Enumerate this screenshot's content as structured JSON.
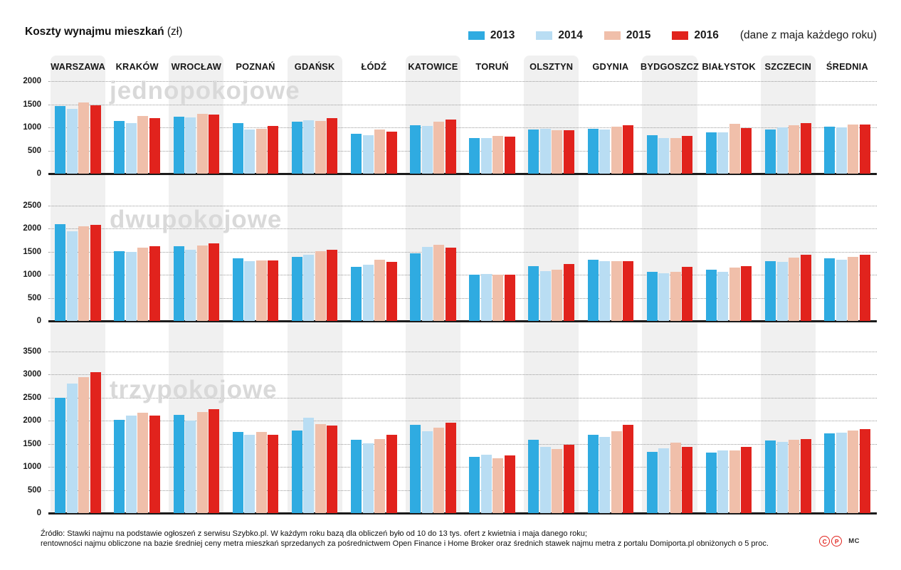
{
  "title": {
    "main": "Koszty wynajmu mieszkań",
    "unit": "(zł)"
  },
  "legend": {
    "items": [
      {
        "label": "2013",
        "color": "#2fabe1"
      },
      {
        "label": "2014",
        "color": "#b9ddf3"
      },
      {
        "label": "2015",
        "color": "#f0bfaa"
      },
      {
        "label": "2016",
        "color": "#e1231d"
      }
    ],
    "note": "(dane z maja każdego roku)"
  },
  "cities": [
    "WARSZAWA",
    "KRAKÓW",
    "WROCŁAW",
    "POZNAŃ",
    "GDAŃSK",
    "ŁÓDŹ",
    "KATOWICE",
    "TORUŃ",
    "OLSZTYN",
    "GDYNIA",
    "BYDGOSZCZ",
    "BIAŁYSTOK",
    "SZCZECIN",
    "ŚREDNIA"
  ],
  "chart_data": [
    {
      "type": "bar",
      "title": "jednopokojowe",
      "ylim": [
        0,
        2000
      ],
      "ytick_step": 500,
      "grid": "dotted-horizontal",
      "categories": [
        "WARSZAWA",
        "KRAKÓW",
        "WROCŁAW",
        "POZNAŃ",
        "GDAŃSK",
        "ŁÓDŹ",
        "KATOWICE",
        "TORUŃ",
        "OLSZTYN",
        "GDYNIA",
        "BYDGOSZCZ",
        "BIAŁYSTOK",
        "SZCZECIN",
        "ŚREDNIA"
      ],
      "series": [
        {
          "name": "2013",
          "values": [
            1455,
            1140,
            1225,
            1100,
            1120,
            865,
            1045,
            765,
            950,
            965,
            825,
            885,
            950,
            1015
          ]
        },
        {
          "name": "2014",
          "values": [
            1400,
            1100,
            1215,
            960,
            1150,
            825,
            1035,
            765,
            975,
            955,
            765,
            895,
            1005,
            995
          ]
        },
        {
          "name": "2015",
          "values": [
            1545,
            1250,
            1300,
            965,
            1140,
            950,
            1125,
            810,
            935,
            1015,
            765,
            1075,
            1050,
            1065
          ]
        },
        {
          "name": "2016",
          "values": [
            1480,
            1205,
            1270,
            1030,
            1200,
            910,
            1165,
            800,
            945,
            1050,
            820,
            985,
            1085,
            1060
          ]
        }
      ]
    },
    {
      "type": "bar",
      "title": "dwupokojowe",
      "ylim": [
        0,
        2500
      ],
      "ytick_step": 500,
      "grid": "dotted-horizontal",
      "categories": [
        "WARSZAWA",
        "KRAKÓW",
        "WROCŁAW",
        "POZNAŃ",
        "GDAŃSK",
        "ŁÓDŹ",
        "KATOWICE",
        "TORUŃ",
        "OLSZTYN",
        "GDYNIA",
        "BYDGOSZCZ",
        "BIAŁYSTOK",
        "SZCZECIN",
        "ŚREDNIA"
      ],
      "series": [
        {
          "name": "2013",
          "values": [
            2100,
            1505,
            1615,
            1355,
            1390,
            1175,
            1470,
            1010,
            1190,
            1320,
            1065,
            1110,
            1300,
            1355
          ]
        },
        {
          "name": "2014",
          "values": [
            1950,
            1500,
            1550,
            1290,
            1440,
            1220,
            1600,
            1015,
            1080,
            1290,
            1030,
            1070,
            1275,
            1330
          ]
        },
        {
          "name": "2015",
          "values": [
            2050,
            1585,
            1640,
            1305,
            1520,
            1320,
            1650,
            1010,
            1110,
            1300,
            1060,
            1165,
            1375,
            1390
          ]
        },
        {
          "name": "2016",
          "values": [
            2090,
            1615,
            1690,
            1305,
            1540,
            1275,
            1595,
            1005,
            1235,
            1290,
            1175,
            1185,
            1430,
            1430
          ]
        }
      ]
    },
    {
      "type": "bar",
      "title": "trzypokojowe",
      "ylim": [
        0,
        3500
      ],
      "ytick_step": 500,
      "grid": "dotted-horizontal",
      "categories": [
        "WARSZAWA",
        "KRAKÓW",
        "WROCŁAW",
        "POZNAŃ",
        "GDAŃSK",
        "ŁÓDŹ",
        "KATOWICE",
        "TORUŃ",
        "OLSZTYN",
        "GDYNIA",
        "BYDGOSZCZ",
        "BIAŁYSTOK",
        "SZCZECIN",
        "ŚREDNIA"
      ],
      "series": [
        {
          "name": "2013",
          "values": [
            2500,
            2025,
            2135,
            1765,
            1790,
            1585,
            1910,
            1220,
            1585,
            1700,
            1330,
            1315,
            1570,
            1725
          ]
        },
        {
          "name": "2014",
          "values": [
            2810,
            2105,
            2000,
            1690,
            2070,
            1510,
            1770,
            1270,
            1430,
            1655,
            1405,
            1355,
            1540,
            1735
          ]
        },
        {
          "name": "2015",
          "values": [
            2940,
            2175,
            2190,
            1755,
            1935,
            1600,
            1850,
            1180,
            1385,
            1770,
            1530,
            1360,
            1595,
            1790
          ]
        },
        {
          "name": "2016",
          "values": [
            3060,
            2120,
            2250,
            1700,
            1895,
            1690,
            1965,
            1255,
            1480,
            1905,
            1430,
            1430,
            1610,
            1825
          ]
        }
      ]
    }
  ],
  "footer": {
    "line1": "Źródło: Stawki najmu na podstawie ogłoszeń z serwisu Szybko.pl. W każdym roku bazą dla obliczeń było od 10 do 13 tys. ofert z kwietnia i maja danego roku;",
    "line2": "rentowności najmu obliczone na bazie średniej ceny metra mieszkań sprzedanych za pośrednictwem Open Finance i Home Broker oraz średnich stawek najmu metra z portalu Domiporta.pl obniżonych o 5 proc.",
    "badges": [
      "C",
      "P"
    ],
    "credit": "MC"
  }
}
